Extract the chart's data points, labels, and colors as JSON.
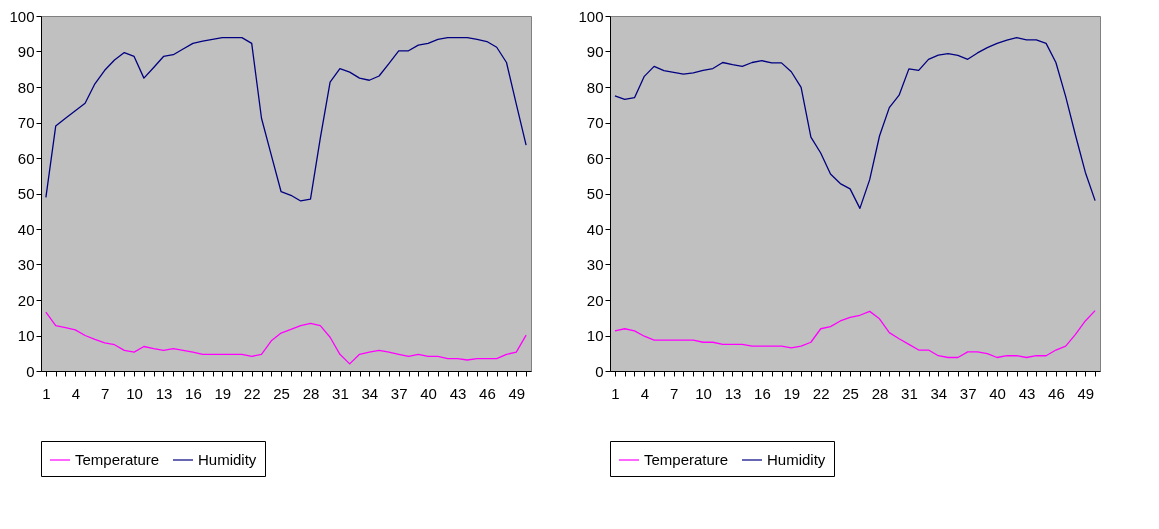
{
  "chart_data": [
    {
      "type": "line",
      "categories": [
        "1",
        null,
        null,
        "4",
        null,
        null,
        "7",
        null,
        null,
        "10",
        null,
        null,
        "13",
        null,
        null,
        "16",
        null,
        null,
        "19",
        null,
        null,
        "22",
        null,
        null,
        "25",
        null,
        null,
        "28",
        null,
        null,
        "31",
        null,
        null,
        "34",
        null,
        null,
        "37",
        null,
        null,
        "40",
        null,
        null,
        "43",
        null,
        null,
        "46",
        null,
        null,
        "49",
        null
      ],
      "series": [
        {
          "name": "Temperature",
          "color": "#ff00ff",
          "values": [
            16.6,
            12.8,
            12.2,
            11.6,
            10.0,
            8.9,
            7.9,
            7.4,
            5.8,
            5.3,
            6.9,
            6.3,
            5.8,
            6.3,
            5.8,
            5.3,
            4.7,
            4.7,
            4.7,
            4.7,
            4.7,
            4.1,
            4.7,
            8.5,
            10.7,
            11.7,
            12.8,
            13.4,
            12.8,
            9.5,
            4.7,
            2.0,
            4.7,
            5.3,
            5.8,
            5.3,
            4.7,
            4.1,
            4.7,
            4.1,
            4.1,
            3.5,
            3.5,
            3.1,
            3.5,
            3.5,
            3.5,
            4.7,
            5.3,
            10.1
          ]
        },
        {
          "name": "Humidity",
          "color": "#000080",
          "values": [
            48.9,
            69.0,
            71.2,
            73.3,
            75.4,
            80.9,
            84.7,
            87.6,
            89.7,
            88.6,
            82.5,
            85.5,
            88.6,
            89.1,
            90.7,
            92.3,
            92.9,
            93.4,
            93.9,
            93.9,
            93.9,
            92.3,
            71.2,
            60.8,
            50.5,
            49.5,
            47.9,
            48.4,
            65.6,
            81.4,
            85.2,
            84.2,
            82.5,
            81.9,
            83.1,
            86.6,
            90.2,
            90.2,
            91.8,
            92.3,
            93.4,
            93.9,
            93.9,
            93.9,
            93.4,
            92.8,
            91.2,
            86.9,
            75.2,
            63.6
          ]
        }
      ],
      "ylim": [
        0,
        100
      ],
      "yticks": [
        0,
        10,
        20,
        30,
        40,
        50,
        60,
        70,
        80,
        90,
        100
      ],
      "legend": "bottom",
      "line_style": "solid"
    },
    {
      "type": "line",
      "categories": [
        "1",
        null,
        null,
        "4",
        null,
        null,
        "7",
        null,
        null,
        "10",
        null,
        null,
        "13",
        null,
        null,
        "16",
        null,
        null,
        "19",
        null,
        null,
        "22",
        null,
        null,
        "25",
        null,
        null,
        "28",
        null,
        null,
        "31",
        null,
        null,
        "34",
        null,
        null,
        "37",
        null,
        null,
        "40",
        null,
        null,
        "43",
        null,
        null,
        "46",
        null,
        null,
        "49",
        null
      ],
      "series": [
        {
          "name": "Temperature",
          "color": "#ff00ff",
          "values": [
            11.3,
            11.9,
            11.3,
            9.8,
            8.7,
            8.7,
            8.7,
            8.7,
            8.7,
            8.1,
            8.1,
            7.5,
            7.5,
            7.5,
            7.0,
            7.0,
            7.0,
            7.0,
            6.5,
            7.0,
            8.1,
            11.9,
            12.5,
            14.1,
            15.1,
            15.7,
            16.8,
            14.7,
            10.8,
            9.1,
            7.5,
            5.9,
            5.9,
            4.3,
            3.8,
            3.8,
            5.4,
            5.4,
            4.9,
            3.8,
            4.3,
            4.3,
            3.8,
            4.3,
            4.3,
            5.9,
            7.0,
            10.3,
            14.1,
            17.0
          ]
        },
        {
          "name": "Humidity",
          "color": "#000080",
          "values": [
            77.5,
            76.5,
            77.0,
            83.0,
            85.8,
            84.6,
            84.1,
            83.6,
            84.0,
            84.7,
            85.2,
            86.9,
            86.3,
            85.8,
            86.9,
            87.4,
            86.8,
            86.8,
            84.3,
            79.9,
            65.9,
            61.4,
            55.5,
            52.8,
            51.3,
            45.8,
            53.9,
            66.2,
            74.2,
            77.7,
            85.1,
            84.7,
            87.8,
            89.0,
            89.4,
            88.9,
            87.8,
            89.6,
            91.1,
            92.3,
            93.2,
            93.9,
            93.3,
            93.3,
            92.3,
            86.9,
            77.3,
            66.4,
            56.0,
            48.0
          ]
        }
      ],
      "ylim": [
        0,
        100
      ],
      "yticks": [
        0,
        10,
        20,
        30,
        40,
        50,
        60,
        70,
        80,
        90,
        100
      ],
      "legend": "bottom",
      "line_style": "solid"
    }
  ]
}
